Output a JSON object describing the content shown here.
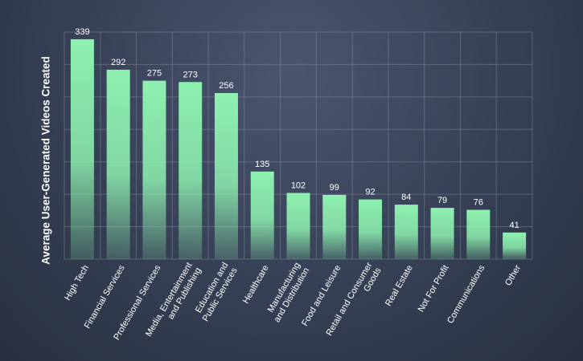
{
  "chart_data": {
    "type": "bar",
    "title": "",
    "xlabel": "",
    "ylabel": "Average User-Generated Videos Created",
    "categories": [
      "High Tech",
      "Financial Services",
      "Professional Services",
      "Media, Entertainment\nand Publishing",
      "Education and\nPublic Services",
      "Healthcare",
      "Manufacturing\nand Distribution",
      "Food and Leisure",
      "Retail and Consumer\nGoods",
      "Real Estate",
      "Not For Profit",
      "Communications",
      "Other"
    ],
    "values": [
      339,
      292,
      275,
      273,
      256,
      135,
      102,
      99,
      92,
      84,
      79,
      76,
      41
    ],
    "ylim": [
      0,
      350
    ],
    "grid": true,
    "bar_color": "#8ef0b0",
    "label_color": "#ffffff",
    "grid_color": "#8a93a5"
  }
}
